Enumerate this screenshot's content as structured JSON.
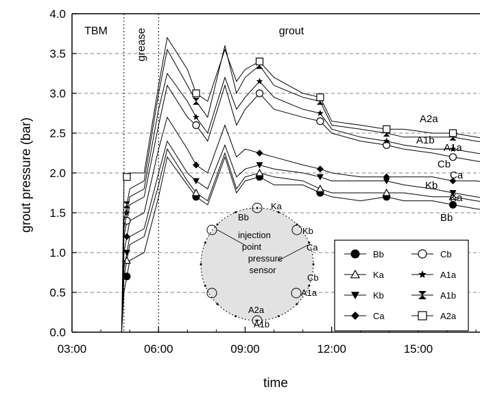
{
  "chart_data": {
    "type": "line",
    "xlabel": "time",
    "ylabel": "grout pressure (bar)",
    "xlim_hours": [
      3,
      18
    ],
    "ylim": [
      0.0,
      4.0
    ],
    "x_ticks": [
      "03:00",
      "06:00",
      "09:00",
      "12:00",
      "15:00"
    ],
    "x_tick_hours": [
      3,
      6,
      9,
      12,
      15
    ],
    "y_ticks": [
      "0.0",
      "0.5",
      "1.0",
      "1.5",
      "2.0",
      "2.5",
      "3.0",
      "3.5",
      "4.0"
    ],
    "y_tick_values": [
      0.0,
      0.5,
      1.0,
      1.5,
      2.0,
      2.5,
      3.0,
      3.5,
      4.0
    ],
    "grid": true,
    "legend_position": "bottom-right",
    "phases": [
      {
        "label": "TBM",
        "start": 3.0,
        "end": 4.8
      },
      {
        "label": "grease",
        "start": 4.8,
        "end": 6.0
      },
      {
        "label": "grout",
        "start": 6.0,
        "end": 18.0
      }
    ],
    "series": [
      {
        "name": "Bb",
        "marker": "filled-circle",
        "x": [
          4.8,
          5.0,
          5.5,
          6.0,
          6.3,
          7.0,
          7.3,
          7.7,
          8.3,
          8.7,
          9.0,
          9.5,
          10.0,
          11.0,
          11.6,
          12.0,
          13.0,
          13.9,
          14.5,
          15.5,
          16.2,
          17.0,
          18.0
        ],
        "y": [
          0.5,
          0.9,
          1.0,
          1.7,
          2.2,
          1.85,
          1.7,
          1.6,
          2.2,
          1.75,
          1.9,
          1.95,
          1.85,
          1.85,
          1.75,
          1.7,
          1.65,
          1.7,
          1.65,
          1.65,
          1.6,
          1.55,
          1.5
        ]
      },
      {
        "name": "Ka",
        "marker": "open-triangle",
        "x": [
          4.8,
          5.0,
          5.5,
          6.0,
          6.3,
          7.0,
          7.3,
          7.7,
          8.3,
          8.7,
          9.0,
          9.5,
          10.0,
          11.0,
          11.6,
          12.0,
          13.0,
          13.9,
          14.5,
          15.5,
          16.2,
          17.0,
          18.0
        ],
        "y": [
          0.7,
          1.1,
          1.2,
          1.85,
          2.3,
          1.9,
          1.75,
          1.65,
          2.25,
          1.8,
          1.95,
          2.0,
          1.95,
          1.9,
          1.8,
          1.75,
          1.75,
          1.75,
          1.75,
          1.7,
          1.7,
          1.65,
          1.6
        ]
      },
      {
        "name": "Kb",
        "marker": "filled-triangle-down",
        "x": [
          4.8,
          5.0,
          5.5,
          6.0,
          6.3,
          7.0,
          7.3,
          7.7,
          8.3,
          8.7,
          9.0,
          9.5,
          10.0,
          11.0,
          11.6,
          12.0,
          13.0,
          13.9,
          14.5,
          15.5,
          16.2,
          17.0,
          18.0
        ],
        "y": [
          0.8,
          1.2,
          1.3,
          2.0,
          2.4,
          2.0,
          1.9,
          1.8,
          2.35,
          1.95,
          2.05,
          2.1,
          2.05,
          2.0,
          1.95,
          1.9,
          1.9,
          1.9,
          1.85,
          1.8,
          1.75,
          1.7,
          1.65
        ]
      },
      {
        "name": "Ca",
        "marker": "filled-diamond",
        "x": [
          4.8,
          5.0,
          5.5,
          6.0,
          6.3,
          7.0,
          7.3,
          7.7,
          8.3,
          8.7,
          9.0,
          9.5,
          10.0,
          11.0,
          11.6,
          12.0,
          13.0,
          13.9,
          14.5,
          15.5,
          16.2,
          17.0,
          18.0
        ],
        "y": [
          1.0,
          1.4,
          1.5,
          2.3,
          2.7,
          2.3,
          2.1,
          2.0,
          2.6,
          2.2,
          2.3,
          2.25,
          2.2,
          2.1,
          2.05,
          2.0,
          1.95,
          1.95,
          1.95,
          1.95,
          1.9,
          1.9,
          1.85
        ]
      },
      {
        "name": "Cb",
        "marker": "open-circle",
        "x": [
          4.8,
          5.0,
          5.5,
          6.0,
          6.3,
          7.0,
          7.3,
          7.7,
          8.3,
          8.7,
          9.0,
          9.5,
          10.0,
          11.0,
          11.6,
          12.0,
          13.0,
          13.9,
          14.5,
          15.5,
          16.2,
          17.0,
          18.0
        ],
        "y": [
          1.2,
          1.6,
          1.7,
          2.6,
          3.1,
          2.7,
          2.6,
          2.4,
          3.1,
          2.6,
          2.8,
          3.0,
          2.8,
          2.7,
          2.65,
          2.5,
          2.4,
          2.35,
          2.3,
          2.25,
          2.2,
          2.15,
          2.1
        ]
      },
      {
        "name": "A1a",
        "marker": "filled-star",
        "x": [
          4.8,
          5.0,
          5.5,
          6.0,
          6.3,
          7.0,
          7.3,
          7.7,
          8.3,
          8.7,
          9.0,
          9.5,
          10.0,
          11.0,
          11.6,
          12.0,
          13.0,
          13.9,
          14.5,
          15.5,
          16.2,
          17.0,
          18.0
        ],
        "y": [
          1.3,
          1.7,
          1.8,
          2.8,
          3.25,
          2.9,
          2.7,
          2.5,
          3.2,
          2.8,
          2.95,
          3.15,
          2.95,
          2.8,
          2.75,
          2.55,
          2.45,
          2.4,
          2.35,
          2.3,
          2.3,
          2.25,
          2.2
        ]
      },
      {
        "name": "A1b",
        "marker": "filled-hourglass",
        "x": [
          4.8,
          5.0,
          5.5,
          6.0,
          6.3,
          7.0,
          7.3,
          7.7,
          8.3,
          8.7,
          9.0,
          9.5,
          10.0,
          11.0,
          11.6,
          12.0,
          13.0,
          13.9,
          14.5,
          15.5,
          16.2,
          17.0,
          18.0
        ],
        "y": [
          1.4,
          1.8,
          1.9,
          3.0,
          3.55,
          3.1,
          2.9,
          2.7,
          3.6,
          3.0,
          3.2,
          3.35,
          3.1,
          2.95,
          2.9,
          2.6,
          2.55,
          2.5,
          2.45,
          2.45,
          2.45,
          2.4,
          2.35
        ]
      },
      {
        "name": "A2a",
        "marker": "open-square",
        "x": [
          4.8,
          5.0,
          5.5,
          6.0,
          6.3,
          7.0,
          7.3,
          7.7,
          8.3,
          8.7,
          9.0,
          9.5,
          10.0,
          11.0,
          11.6,
          12.0,
          13.0,
          13.9,
          14.5,
          15.5,
          16.2,
          17.0,
          18.0
        ],
        "y": [
          1.9,
          2.0,
          2.0,
          3.1,
          3.7,
          3.3,
          3.0,
          2.9,
          3.55,
          3.15,
          3.3,
          3.4,
          3.2,
          3.0,
          2.95,
          2.65,
          2.6,
          2.55,
          2.55,
          2.5,
          2.5,
          2.45,
          2.4
        ]
      }
    ],
    "series_end_labels": [
      "A2a",
      "A1b",
      "A1a",
      "Cb",
      "Ca",
      "Kb",
      "Ka",
      "Bb"
    ],
    "inset": {
      "title_lines": [
        "injection",
        "point"
      ],
      "sensor_lines": [
        "pressure",
        "sensor"
      ],
      "positions": [
        "Ka",
        "Bb",
        "Kb",
        "Ca",
        "Cb",
        "A1a",
        "A2a",
        "A1b"
      ]
    }
  }
}
